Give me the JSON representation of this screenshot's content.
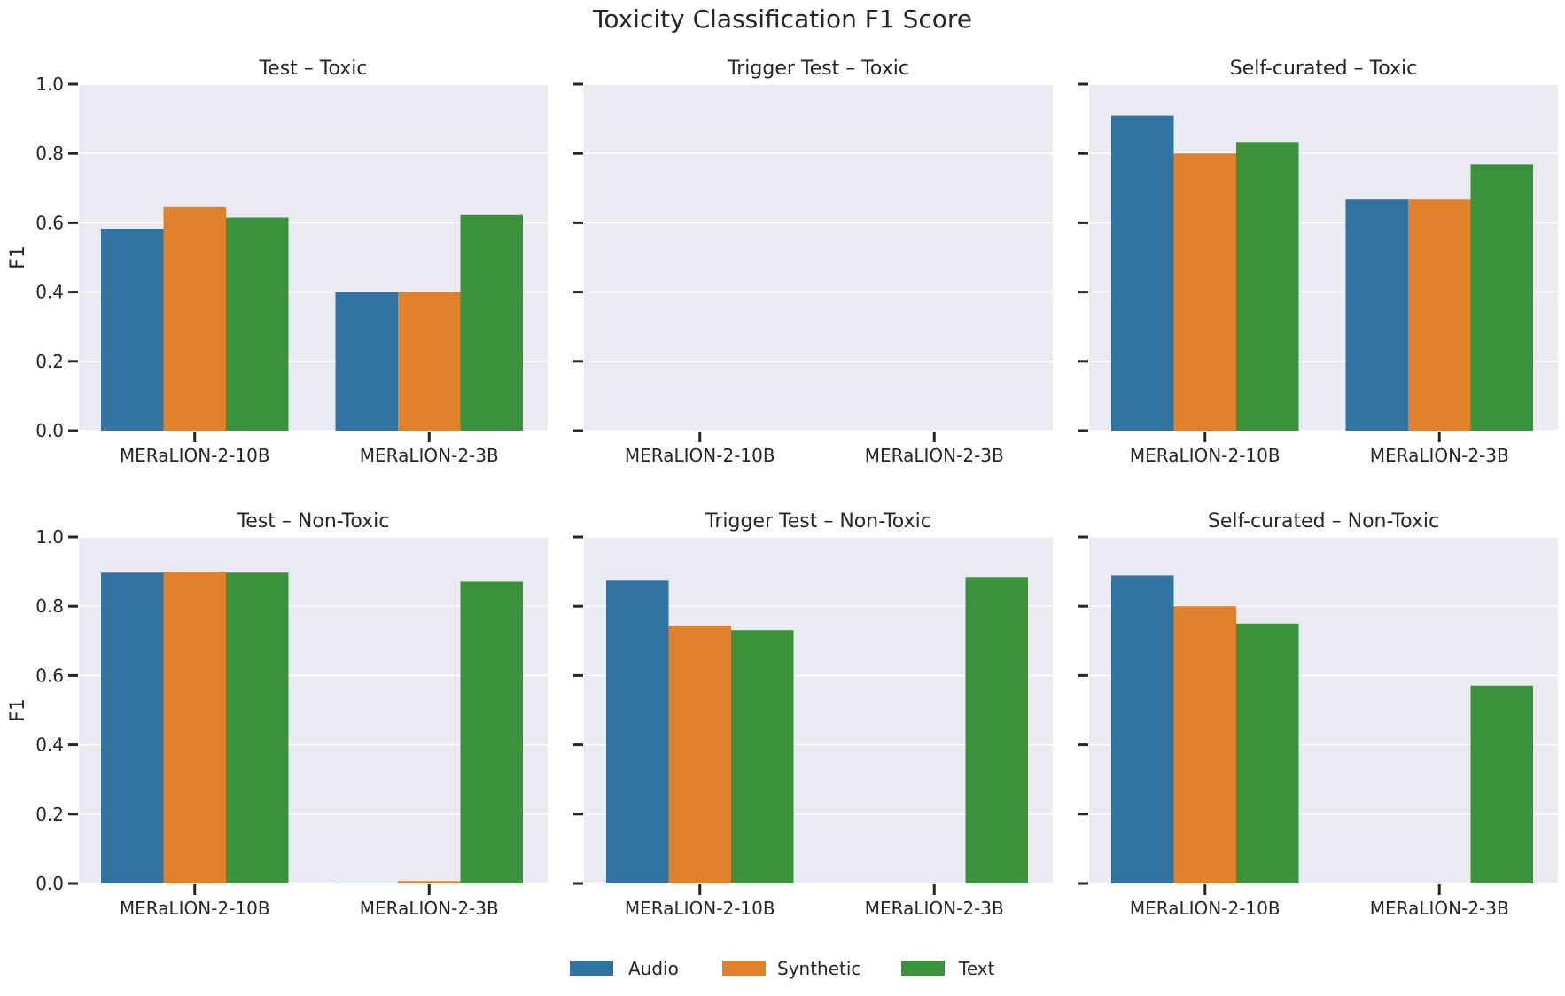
{
  "figure_title": "Toxicity Classification F1 Score",
  "colors": {
    "Audio": "#3274a1",
    "Synthetic": "#e1812c",
    "Text": "#3a923a",
    "panel_bg": "#eaeaf2"
  },
  "legend": {
    "placement": "bottom-center",
    "items": [
      "Audio",
      "Synthetic",
      "Text"
    ]
  },
  "chart_data": [
    {
      "type": "bar",
      "title": "Test – Toxic",
      "ylabel": "F1",
      "ylim": [
        0,
        1
      ],
      "yticks": [
        "0.0",
        "0.2",
        "0.4",
        "0.6",
        "0.8",
        "1.0"
      ],
      "grid": true,
      "categories": [
        "MERaLION-2-10B",
        "MERaLION-2-3B"
      ],
      "series": [
        {
          "name": "Audio",
          "values": [
            0.583,
            0.4
          ]
        },
        {
          "name": "Synthetic",
          "values": [
            0.645,
            0.4
          ]
        },
        {
          "name": "Text",
          "values": [
            0.615,
            0.622
          ]
        }
      ]
    },
    {
      "type": "bar",
      "title": "Trigger Test – Toxic",
      "ylabel": "",
      "ylim": [
        0,
        1
      ],
      "yticks": [
        "0.0",
        "0.2",
        "0.4",
        "0.6",
        "0.8",
        "1.0"
      ],
      "grid": true,
      "categories": [
        "MERaLION-2-10B",
        "MERaLION-2-3B"
      ],
      "series": [
        {
          "name": "Audio",
          "values": [
            0,
            0
          ]
        },
        {
          "name": "Synthetic",
          "values": [
            0,
            0
          ]
        },
        {
          "name": "Text",
          "values": [
            0,
            0
          ]
        }
      ]
    },
    {
      "type": "bar",
      "title": "Self-curated – Toxic",
      "ylabel": "",
      "ylim": [
        0,
        1
      ],
      "yticks": [
        "0.0",
        "0.2",
        "0.4",
        "0.6",
        "0.8",
        "1.0"
      ],
      "grid": true,
      "categories": [
        "MERaLION-2-10B",
        "MERaLION-2-3B"
      ],
      "series": [
        {
          "name": "Audio",
          "values": [
            0.909,
            0.667
          ]
        },
        {
          "name": "Synthetic",
          "values": [
            0.8,
            0.667
          ]
        },
        {
          "name": "Text",
          "values": [
            0.833,
            0.769
          ]
        }
      ]
    },
    {
      "type": "bar",
      "title": "Test – Non-Toxic",
      "ylabel": "F1",
      "ylim": [
        0,
        1
      ],
      "yticks": [
        "0.0",
        "0.2",
        "0.4",
        "0.6",
        "0.8",
        "1.0"
      ],
      "grid": true,
      "categories": [
        "MERaLION-2-10B",
        "MERaLION-2-3B"
      ],
      "series": [
        {
          "name": "Audio",
          "values": [
            0.897,
            0.002
          ]
        },
        {
          "name": "Synthetic",
          "values": [
            0.9,
            0.007
          ]
        },
        {
          "name": "Text",
          "values": [
            0.897,
            0.871
          ]
        }
      ]
    },
    {
      "type": "bar",
      "title": "Trigger Test – Non-Toxic",
      "ylabel": "",
      "ylim": [
        0,
        1
      ],
      "yticks": [
        "0.0",
        "0.2",
        "0.4",
        "0.6",
        "0.8",
        "1.0"
      ],
      "grid": true,
      "categories": [
        "MERaLION-2-10B",
        "MERaLION-2-3B"
      ],
      "series": [
        {
          "name": "Audio",
          "values": [
            0.874,
            0
          ]
        },
        {
          "name": "Synthetic",
          "values": [
            0.744,
            0
          ]
        },
        {
          "name": "Text",
          "values": [
            0.731,
            0.884
          ]
        }
      ]
    },
    {
      "type": "bar",
      "title": "Self-curated – Non-Toxic",
      "ylabel": "",
      "ylim": [
        0,
        1
      ],
      "yticks": [
        "0.0",
        "0.2",
        "0.4",
        "0.6",
        "0.8",
        "1.0"
      ],
      "grid": true,
      "categories": [
        "MERaLION-2-10B",
        "MERaLION-2-3B"
      ],
      "series": [
        {
          "name": "Audio",
          "values": [
            0.889,
            0
          ]
        },
        {
          "name": "Synthetic",
          "values": [
            0.8,
            0
          ]
        },
        {
          "name": "Text",
          "values": [
            0.75,
            0.571
          ]
        }
      ]
    }
  ]
}
